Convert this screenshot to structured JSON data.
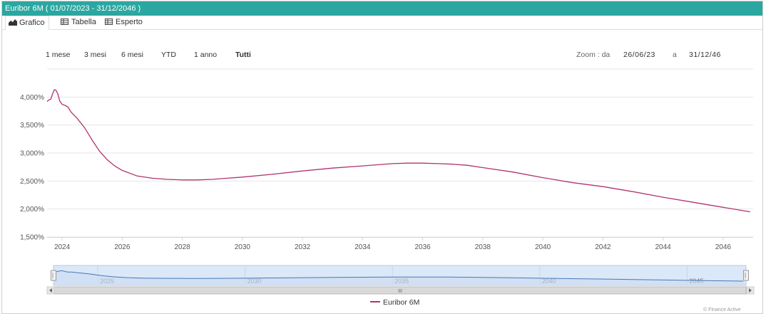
{
  "window": {
    "title": "Euribor 6M ( 01/07/2023 - 31/12/2046 )"
  },
  "tabs": [
    {
      "label": "Grafico",
      "icon": "area-chart-icon"
    },
    {
      "label": "Tabella",
      "icon": "table-icon"
    },
    {
      "label": "Esperto",
      "icon": "table-icon"
    }
  ],
  "range_selector": {
    "buttons": [
      "1 mese",
      "3 mesi",
      "6 mesi",
      "YTD",
      "1 anno",
      "Tutti"
    ],
    "selected": "Tutti",
    "zoom_label": "Zoom : da",
    "from": "26/06/23",
    "to_label": "a",
    "to": "31/12/46"
  },
  "chart_data": {
    "type": "line",
    "title": "",
    "xlabel": "",
    "ylabel": "",
    "ylim": [
      1.5,
      4.5
    ],
    "xlim": [
      2023.5,
      2047.0
    ],
    "y_ticks": [
      "1,500%",
      "2,000%",
      "2,500%",
      "3,000%",
      "3,500%",
      "4,000%"
    ],
    "y_tick_values": [
      1.5,
      2.0,
      2.5,
      3.0,
      3.5,
      4.0
    ],
    "x_ticks": [
      "2024",
      "2026",
      "2028",
      "2030",
      "2032",
      "2034",
      "2036",
      "2038",
      "2040",
      "2042",
      "2044",
      "2046"
    ],
    "x_tick_values": [
      2024,
      2026,
      2028,
      2030,
      2032,
      2034,
      2036,
      2038,
      2040,
      2042,
      2044,
      2046
    ],
    "grid": true,
    "legend_position": "bottom-center",
    "colors": {
      "series": "#b0336e",
      "navigator_line": "#4a78b4",
      "navigator_fill": "#dbe8f8",
      "title_bar": "#2aa7a0"
    },
    "series": [
      {
        "name": "Euribor 6M",
        "x": [
          2023.5,
          2023.56,
          2023.62,
          2023.68,
          2023.74,
          2023.8,
          2023.86,
          2023.92,
          2024.0,
          2024.1,
          2024.2,
          2024.3,
          2024.5,
          2024.75,
          2025.0,
          2025.25,
          2025.5,
          2025.75,
          2026.0,
          2026.5,
          2027.0,
          2027.5,
          2028.0,
          2028.5,
          2029.0,
          2029.5,
          2030.0,
          2031.0,
          2032.0,
          2033.0,
          2034.0,
          2035.0,
          2035.5,
          2036.0,
          2036.5,
          2037.0,
          2037.5,
          2038.0,
          2039.0,
          2040.0,
          2041.0,
          2042.0,
          2043.0,
          2044.0,
          2045.0,
          2046.0,
          2046.9
        ],
        "values": [
          3.92,
          3.95,
          3.96,
          4.05,
          4.13,
          4.12,
          4.05,
          3.93,
          3.87,
          3.85,
          3.82,
          3.73,
          3.62,
          3.45,
          3.23,
          3.03,
          2.88,
          2.77,
          2.69,
          2.59,
          2.55,
          2.53,
          2.52,
          2.52,
          2.53,
          2.55,
          2.57,
          2.62,
          2.68,
          2.73,
          2.77,
          2.81,
          2.82,
          2.82,
          2.81,
          2.8,
          2.78,
          2.74,
          2.66,
          2.56,
          2.47,
          2.4,
          2.31,
          2.21,
          2.12,
          2.03,
          1.95
        ]
      }
    ],
    "navigator": {
      "x_ticks": [
        "2025",
        "2030",
        "2035",
        "2040",
        "2045"
      ],
      "x_tick_values": [
        2025,
        2030,
        2035,
        2040,
        2045
      ],
      "scrollbar_mark": "III"
    }
  },
  "legend": {
    "label": "Euribor 6M"
  },
  "credit": "© Finance Active"
}
